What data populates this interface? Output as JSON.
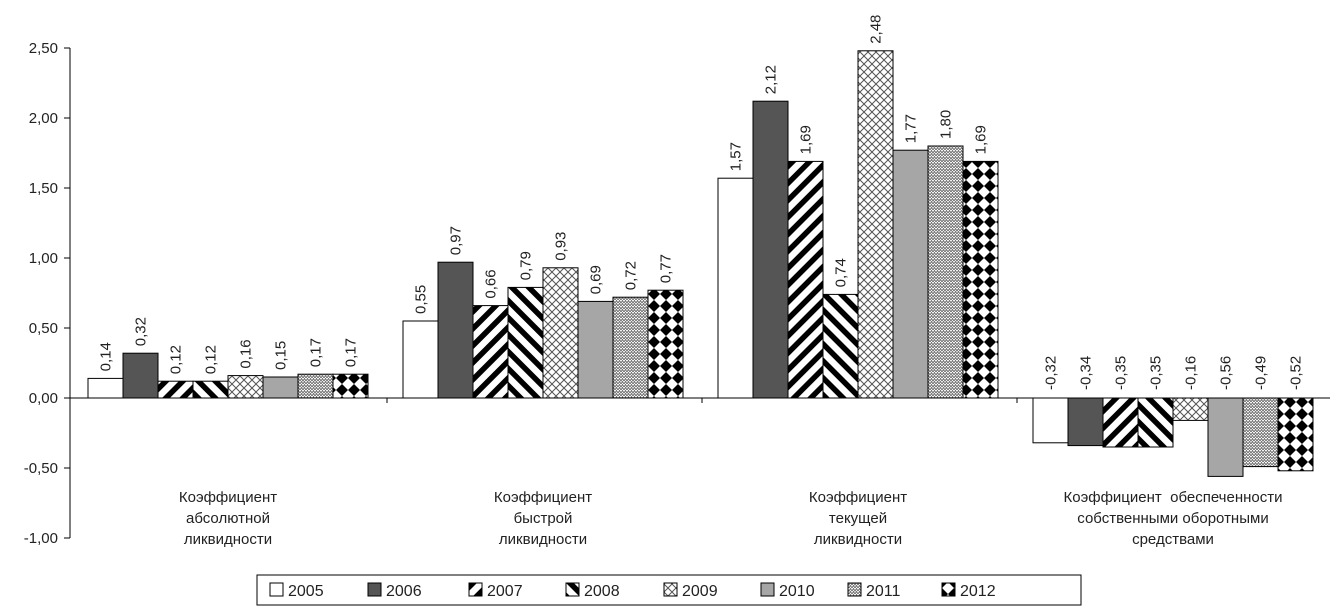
{
  "chart_data": {
    "type": "bar",
    "title": "",
    "xlabel": "",
    "ylabel": "",
    "ylim": [
      -1.0,
      2.5
    ],
    "yticks": [
      -1.0,
      -0.5,
      0.0,
      0.5,
      1.0,
      1.5,
      2.0,
      2.5
    ],
    "ytick_labels": [
      "-1,00",
      "-0,50",
      "0,00",
      "0,50",
      "1,00",
      "1,50",
      "2,00",
      "2,50"
    ],
    "grid": false,
    "legend_position": "bottom",
    "categories": [
      [
        "Коэффициент",
        "абсолютной",
        "ликвидности"
      ],
      [
        "Коэффициент",
        "быстрой",
        "ликвидности"
      ],
      [
        "Коэффициент",
        "текущей",
        "ликвидности"
      ],
      [
        "Коэффициент  обеспеченности",
        "собственными оборотными",
        "средствами"
      ]
    ],
    "series": [
      {
        "name": "2005",
        "values": [
          0.14,
          0.55,
          1.57,
          -0.32
        ],
        "labels": [
          "0,14",
          "0,55",
          "1,57",
          "-0,32"
        ],
        "pattern": "white"
      },
      {
        "name": "2006",
        "values": [
          0.32,
          0.97,
          2.12,
          -0.34
        ],
        "labels": [
          "0,32",
          "0,97",
          "2,12",
          "-0,34"
        ],
        "pattern": "dark"
      },
      {
        "name": "2007",
        "values": [
          0.12,
          0.66,
          1.69,
          -0.35
        ],
        "labels": [
          "0,12",
          "0,66",
          "1,69",
          "-0,35"
        ],
        "pattern": "diag-up"
      },
      {
        "name": "2008",
        "values": [
          0.12,
          0.79,
          0.74,
          -0.35
        ],
        "labels": [
          "0,12",
          "0,79",
          "0,74",
          "-0,35"
        ],
        "pattern": "diag-down"
      },
      {
        "name": "2009",
        "values": [
          0.16,
          0.93,
          2.48,
          -0.16
        ],
        "labels": [
          "0,16",
          "0,93",
          "2,48",
          "-0,16"
        ],
        "pattern": "crosshatch"
      },
      {
        "name": "2010",
        "values": [
          0.15,
          0.69,
          1.77,
          -0.56
        ],
        "labels": [
          "0,15",
          "0,69",
          "1,77",
          "-0,56"
        ],
        "pattern": "gray"
      },
      {
        "name": "2011",
        "values": [
          0.17,
          0.72,
          1.8,
          -0.49
        ],
        "labels": [
          "0,17",
          "0,72",
          "1,80",
          "-0,49"
        ],
        "pattern": "zigzag"
      },
      {
        "name": "2012",
        "values": [
          0.17,
          0.77,
          1.69,
          -0.52
        ],
        "labels": [
          "0,17",
          "0,77",
          "1,69",
          "-0,52"
        ],
        "pattern": "diamonds"
      }
    ]
  }
}
